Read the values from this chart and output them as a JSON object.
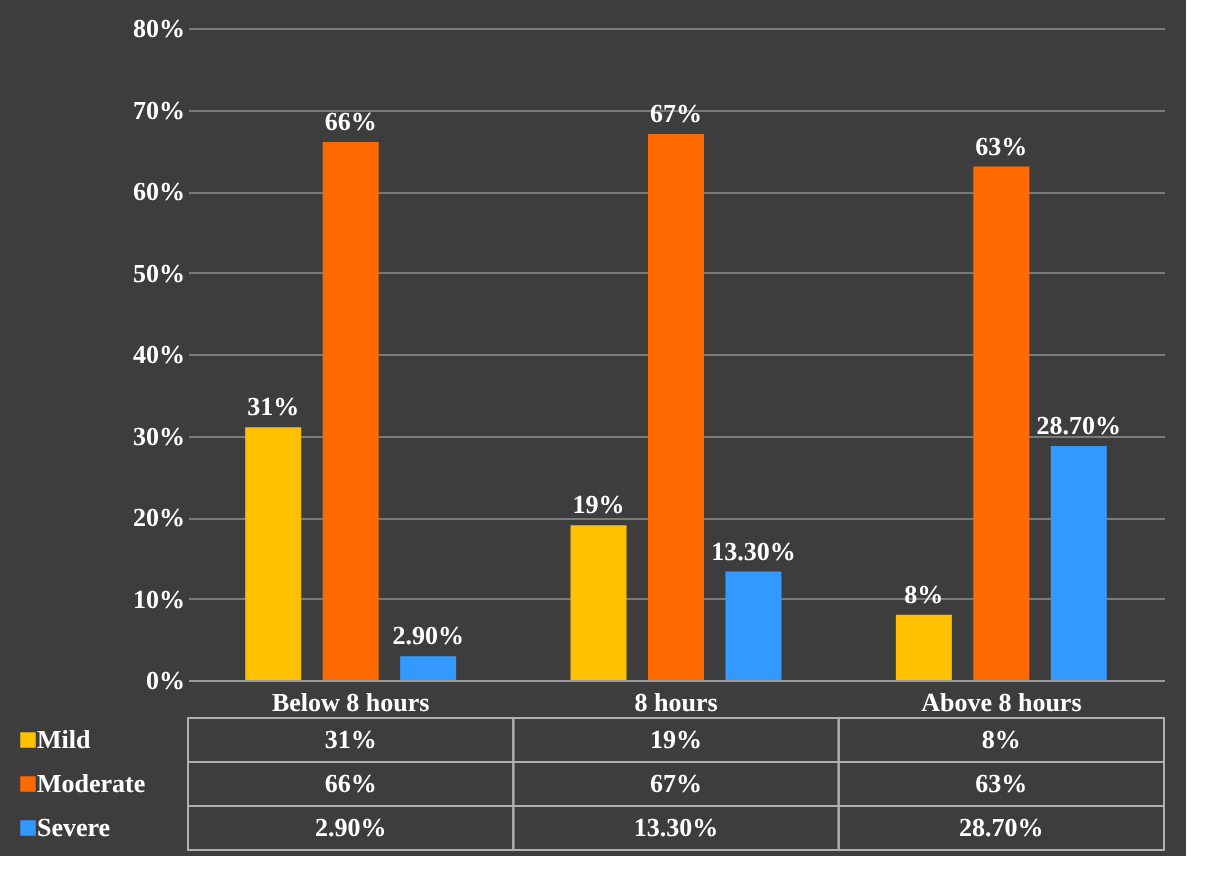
{
  "chart_data": {
    "type": "bar",
    "categories": [
      "Below 8 hours",
      "8 hours",
      "Above 8 hours"
    ],
    "series": [
      {
        "name": "Mild",
        "color": "#ffc000",
        "values": [
          31,
          19,
          8
        ],
        "value_labels": [
          "31%",
          "19%",
          "8%"
        ]
      },
      {
        "name": "Moderate",
        "color": "#ff6a00",
        "values": [
          66,
          67,
          63
        ],
        "value_labels": [
          "66%",
          "67%",
          "63%"
        ]
      },
      {
        "name": "Severe",
        "color": "#3399ff",
        "values": [
          2.9,
          13.3,
          28.7
        ],
        "value_labels": [
          "2.90%",
          "13.30%",
          "28.70%"
        ]
      }
    ],
    "ylim": [
      0,
      80
    ],
    "yticks": [
      {
        "value": 0,
        "label": "0%"
      },
      {
        "value": 10,
        "label": "10%"
      },
      {
        "value": 20,
        "label": "20%"
      },
      {
        "value": 30,
        "label": "30%"
      },
      {
        "value": 40,
        "label": "40%"
      },
      {
        "value": 50,
        "label": "50%"
      },
      {
        "value": 60,
        "label": "60%"
      },
      {
        "value": 70,
        "label": "70%"
      },
      {
        "value": 80,
        "label": "80%"
      }
    ],
    "grid": "y",
    "legend": "bottom"
  }
}
